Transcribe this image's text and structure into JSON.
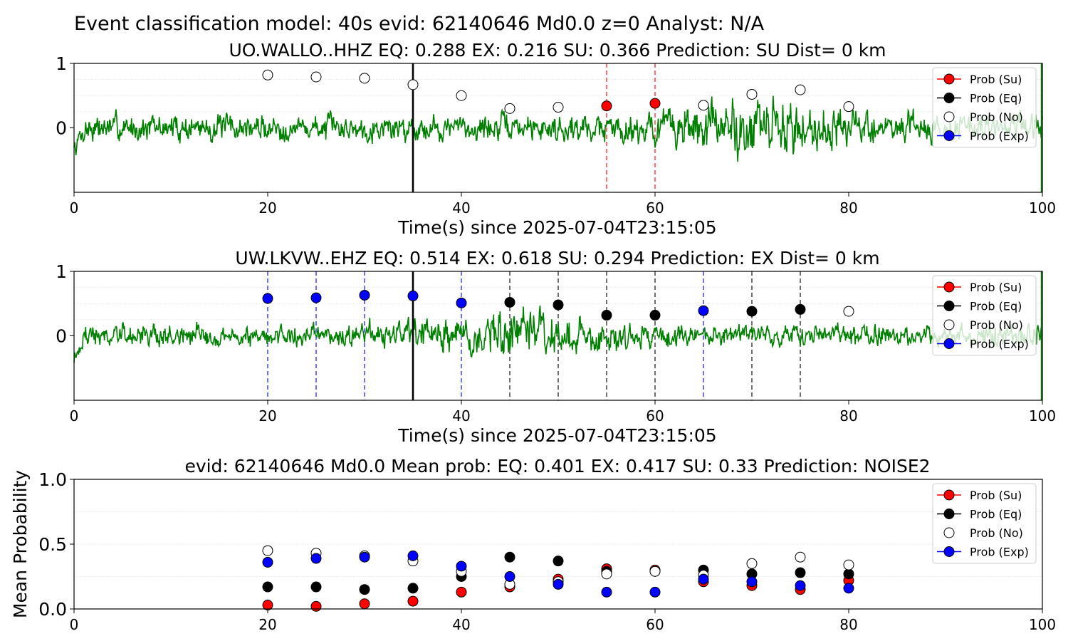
{
  "figure": {
    "suptitle": "Event classification model: 40s evid: 62140646 Md0.0 z=0 Analyst: N/A"
  },
  "colors": {
    "su": "#ff0000",
    "eq": "#000000",
    "no": "#ffffff",
    "exp": "#0000ff",
    "waveform": "#008000",
    "grid": "#d9d9d9"
  },
  "legend": {
    "position": "upper right",
    "entries": [
      {
        "label": "Prob (Su)",
        "color": "#ff0000"
      },
      {
        "label": "Prob (Eq)",
        "color": "#000000"
      },
      {
        "label": "Prob (No)",
        "color": "#ffffff"
      },
      {
        "label": "Prob (Exp)",
        "color": "#0000ff"
      }
    ]
  },
  "chart_data": [
    {
      "type": "line",
      "title": "UO.WALLO..HHZ   EQ: 0.288  EX: 0.216  SU: 0.366   Prediction: SU    Dist= 0 km",
      "xlabel": "Time(s) since 2025-07-04T23:15:05",
      "ylabel": "",
      "xlim": [
        0,
        100
      ],
      "xticks": [
        "0",
        "20",
        "40",
        "60",
        "80",
        "100"
      ],
      "yticks": [
        "0",
        "1"
      ],
      "grid": "horizontal dotted",
      "legend": "upper right",
      "waveform": {
        "name": "waveform",
        "color": "#008000",
        "amplitude_scale": 0.32,
        "burst_center": 70,
        "burst_width": 9,
        "seed": 7
      },
      "marker_line": {
        "x": 35,
        "color": "#000000"
      },
      "vlines": [
        {
          "x": 55,
          "color": "#ff0000"
        },
        {
          "x": 60,
          "color": "#ff0000"
        }
      ],
      "points": [
        {
          "x": 20,
          "y": 0.82,
          "class": "no"
        },
        {
          "x": 25,
          "y": 0.79,
          "class": "no"
        },
        {
          "x": 30,
          "y": 0.77,
          "class": "no"
        },
        {
          "x": 35,
          "y": 0.67,
          "class": "no"
        },
        {
          "x": 40,
          "y": 0.5,
          "class": "no"
        },
        {
          "x": 45,
          "y": 0.3,
          "class": "no"
        },
        {
          "x": 50,
          "y": 0.32,
          "class": "no"
        },
        {
          "x": 55,
          "y": 0.34,
          "class": "su"
        },
        {
          "x": 60,
          "y": 0.38,
          "class": "su"
        },
        {
          "x": 65,
          "y": 0.35,
          "class": "no"
        },
        {
          "x": 70,
          "y": 0.52,
          "class": "no"
        },
        {
          "x": 75,
          "y": 0.59,
          "class": "no"
        },
        {
          "x": 80,
          "y": 0.33,
          "class": "no"
        }
      ]
    },
    {
      "type": "line",
      "title": "UW.LKVW..EHZ   EQ: 0.514  EX: 0.618  SU: 0.294   Prediction: EX    Dist= 0 km",
      "xlabel": "Time(s) since 2025-07-04T23:15:05",
      "ylabel": "",
      "xlim": [
        0,
        100
      ],
      "xticks": [
        "0",
        "20",
        "40",
        "60",
        "80",
        "100"
      ],
      "yticks": [
        "0",
        "1"
      ],
      "grid": "horizontal dotted",
      "legend": "upper right",
      "waveform": {
        "name": "waveform",
        "color": "#008000",
        "amplitude_scale": 0.26,
        "burst_center": 45,
        "burst_width": 10,
        "seed": 19
      },
      "marker_line": {
        "x": 35,
        "color": "#000000"
      },
      "vlines": [
        {
          "x": 20,
          "color": "#0000ff"
        },
        {
          "x": 25,
          "color": "#0000ff"
        },
        {
          "x": 30,
          "color": "#0000ff"
        },
        {
          "x": 40,
          "color": "#0000ff"
        },
        {
          "x": 45,
          "color": "#000000"
        },
        {
          "x": 50,
          "color": "#000000"
        },
        {
          "x": 55,
          "color": "#000000"
        },
        {
          "x": 60,
          "color": "#000000"
        },
        {
          "x": 65,
          "color": "#0000ff"
        },
        {
          "x": 70,
          "color": "#000000"
        },
        {
          "x": 75,
          "color": "#000000"
        }
      ],
      "points": [
        {
          "x": 20,
          "y": 0.58,
          "class": "exp"
        },
        {
          "x": 25,
          "y": 0.59,
          "class": "exp"
        },
        {
          "x": 30,
          "y": 0.63,
          "class": "exp"
        },
        {
          "x": 35,
          "y": 0.62,
          "class": "exp"
        },
        {
          "x": 40,
          "y": 0.51,
          "class": "exp"
        },
        {
          "x": 45,
          "y": 0.52,
          "class": "eq"
        },
        {
          "x": 50,
          "y": 0.48,
          "class": "eq"
        },
        {
          "x": 55,
          "y": 0.32,
          "class": "eq"
        },
        {
          "x": 60,
          "y": 0.32,
          "class": "eq"
        },
        {
          "x": 65,
          "y": 0.39,
          "class": "exp"
        },
        {
          "x": 70,
          "y": 0.38,
          "class": "eq"
        },
        {
          "x": 75,
          "y": 0.41,
          "class": "eq"
        },
        {
          "x": 80,
          "y": 0.38,
          "class": "no"
        }
      ]
    },
    {
      "type": "scatter",
      "title": "evid: 62140646  Md0.0   Mean prob:   EQ: 0.401  EX: 0.417  SU: 0.33   Prediction: NOISE2",
      "xlabel": "",
      "ylabel": "Mean Probability",
      "xlim": [
        0,
        100
      ],
      "ylim": [
        0,
        1
      ],
      "xticks": [
        "0",
        "20",
        "40",
        "60",
        "80",
        "100"
      ],
      "yticks": [
        "0.0",
        "0.5",
        "1.0"
      ],
      "grid": "horizontal dotted",
      "legend": "upper right",
      "x": [
        20,
        25,
        30,
        35,
        40,
        45,
        50,
        55,
        60,
        65,
        70,
        75,
        80
      ],
      "series": [
        {
          "name": "Prob (Su)",
          "class": "su",
          "values": [
            0.03,
            0.02,
            0.04,
            0.06,
            0.13,
            0.17,
            0.23,
            0.31,
            0.3,
            0.21,
            0.18,
            0.15,
            0.22
          ]
        },
        {
          "name": "Prob (Eq)",
          "class": "eq",
          "values": [
            0.17,
            0.17,
            0.15,
            0.16,
            0.25,
            0.4,
            0.37,
            0.29,
            0.29,
            0.3,
            0.27,
            0.28,
            0.27
          ]
        },
        {
          "name": "Prob (No)",
          "class": "no",
          "values": [
            0.45,
            0.43,
            0.41,
            0.37,
            0.29,
            0.19,
            0.21,
            0.27,
            0.29,
            0.26,
            0.35,
            0.4,
            0.34
          ]
        },
        {
          "name": "Prob (Exp)",
          "class": "exp",
          "values": [
            0.36,
            0.39,
            0.4,
            0.41,
            0.33,
            0.25,
            0.19,
            0.13,
            0.13,
            0.23,
            0.21,
            0.18,
            0.16
          ]
        }
      ]
    }
  ]
}
